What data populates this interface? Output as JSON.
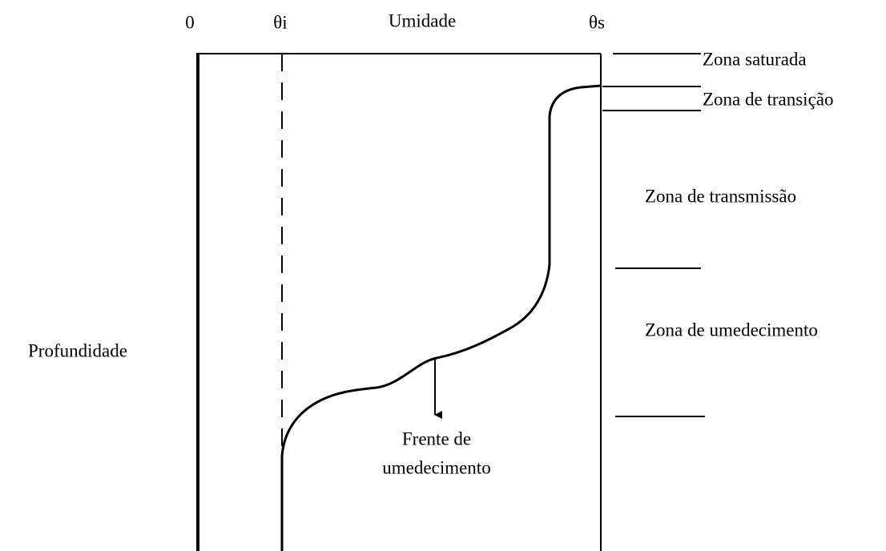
{
  "axis_labels": {
    "origin": "0",
    "theta_i": "θi",
    "moisture": "Umidade",
    "theta_s": "θs",
    "depth": "Profundidade"
  },
  "zones": [
    {
      "label": "Zona saturada"
    },
    {
      "label": "Zona de transição"
    },
    {
      "label": "Zona de transmissão"
    },
    {
      "label": "Zona de umedecimento"
    }
  ],
  "annotation": {
    "lines": [
      "Frente de",
      "umedecimento"
    ]
  }
}
